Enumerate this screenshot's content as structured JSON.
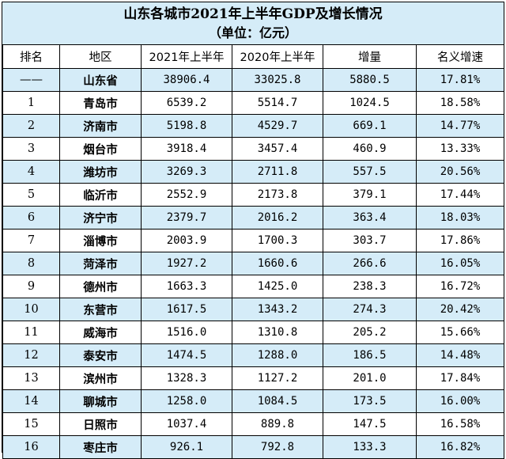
{
  "title": "山东各城市2021年上半年GDP及增长情况",
  "unit": "（单位：亿元）",
  "headers": [
    "排名",
    "地区",
    "2021年上半年",
    "2020年上半年",
    "增量",
    "名义增速"
  ],
  "rows": [
    {
      "rank": "——",
      "region": "山东省",
      "y2021": "38906.4",
      "y2020": "33025.8",
      "increase": "5880.5",
      "growth": "17.81%"
    },
    {
      "rank": "1",
      "region": "青岛市",
      "y2021": "6539.2",
      "y2020": "5514.7",
      "increase": "1024.5",
      "growth": "18.58%"
    },
    {
      "rank": "2",
      "region": "济南市",
      "y2021": "5198.8",
      "y2020": "4529.7",
      "increase": "669.1",
      "growth": "14.77%"
    },
    {
      "rank": "3",
      "region": "烟台市",
      "y2021": "3918.4",
      "y2020": "3457.4",
      "increase": "460.9",
      "growth": "13.33%"
    },
    {
      "rank": "4",
      "region": "潍坊市",
      "y2021": "3269.3",
      "y2020": "2711.8",
      "increase": "557.5",
      "growth": "20.56%"
    },
    {
      "rank": "5",
      "region": "临沂市",
      "y2021": "2552.9",
      "y2020": "2173.8",
      "increase": "379.1",
      "growth": "17.44%"
    },
    {
      "rank": "6",
      "region": "济宁市",
      "y2021": "2379.7",
      "y2020": "2016.2",
      "increase": "363.4",
      "growth": "18.03%"
    },
    {
      "rank": "7",
      "region": "淄博市",
      "y2021": "2003.9",
      "y2020": "1700.3",
      "increase": "303.7",
      "growth": "17.86%"
    },
    {
      "rank": "8",
      "region": "菏泽市",
      "y2021": "1927.2",
      "y2020": "1660.6",
      "increase": "266.6",
      "growth": "16.05%"
    },
    {
      "rank": "9",
      "region": "德州市",
      "y2021": "1663.3",
      "y2020": "1425.0",
      "increase": "238.3",
      "growth": "16.72%"
    },
    {
      "rank": "10",
      "region": "东营市",
      "y2021": "1617.5",
      "y2020": "1343.2",
      "increase": "274.3",
      "growth": "20.42%"
    },
    {
      "rank": "11",
      "region": "威海市",
      "y2021": "1516.0",
      "y2020": "1310.8",
      "increase": "205.2",
      "growth": "15.66%"
    },
    {
      "rank": "12",
      "region": "泰安市",
      "y2021": "1474.5",
      "y2020": "1288.0",
      "increase": "186.5",
      "growth": "14.48%"
    },
    {
      "rank": "13",
      "region": "滨州市",
      "y2021": "1328.3",
      "y2020": "1127.2",
      "increase": "201.0",
      "growth": "17.84%"
    },
    {
      "rank": "14",
      "region": "聊城市",
      "y2021": "1258.0",
      "y2020": "1084.5",
      "increase": "173.5",
      "growth": "16.00%"
    },
    {
      "rank": "15",
      "region": "日照市",
      "y2021": "1037.4",
      "y2020": "889.8",
      "increase": "147.5",
      "growth": "16.58%"
    },
    {
      "rank": "16",
      "region": "枣庄市",
      "y2021": "926.1",
      "y2020": "792.8",
      "increase": "133.3",
      "growth": "16.82%"
    }
  ],
  "colors": {
    "highlight_row": "#d5ecf8",
    "plain_row": "#ffffff",
    "border": "#000000"
  }
}
